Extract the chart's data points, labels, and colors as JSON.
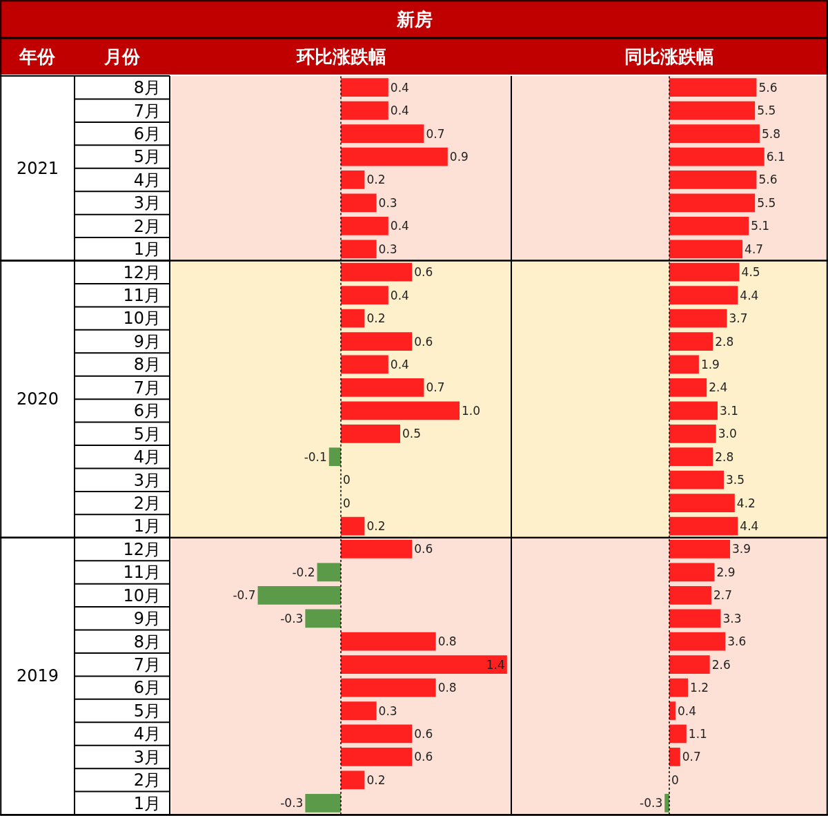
{
  "chart_data": [
    {
      "type": "bar",
      "orientation": "horizontal",
      "title": "环比涨跌幅",
      "ylabel": "2021",
      "annotations": [
        "新房",
        "年份",
        "月份"
      ],
      "categories": [
        "8月",
        "7月",
        "6月",
        "5月",
        "4月",
        "3月",
        "2月",
        "1月"
      ],
      "values": [
        0.4,
        0.4,
        0.7,
        0.9,
        0.2,
        0.3,
        0.4,
        0.3
      ],
      "value_labels": [
        "0.4",
        "0.4",
        "0.7",
        "0.9",
        "0.2",
        "0.3",
        "0.4",
        "0.3"
      ],
      "colors": [
        "#ff2020",
        "#ff2020",
        "#ff2020",
        "#ff2020",
        "#ff2020",
        "#ff2020",
        "#ff2020",
        "#ff2020"
      ],
      "xlim": [
        -1.43,
        1.43
      ],
      "tick_labels": "y",
      "bands": [
        {
          "axis": "x",
          "from": -1.43,
          "to": 1.43,
          "color": "#fde0d6"
        }
      ],
      "ref_lines": [
        {
          "axis": "x",
          "value": 0,
          "color": "#000000",
          "line_style": "dotted"
        }
      ]
    },
    {
      "type": "bar",
      "orientation": "horizontal",
      "title": "同比涨跌幅",
      "categories": [
        "8月",
        "7月",
        "6月",
        "5月",
        "4月",
        "3月",
        "2月",
        "1月"
      ],
      "values": [
        5.6,
        5.5,
        5.8,
        6.1,
        5.6,
        5.5,
        5.1,
        4.7
      ],
      "value_labels": [
        "5.6",
        "5.5",
        "5.8",
        "6.1",
        "5.6",
        "5.5",
        "5.1",
        "4.7"
      ],
      "colors": [
        "#ff2020",
        "#ff2020",
        "#ff2020",
        "#ff2020",
        "#ff2020",
        "#ff2020",
        "#ff2020",
        "#ff2020"
      ],
      "xlim": [
        -10.1,
        10.1
      ],
      "tick_labels": false,
      "bands": [
        {
          "axis": "x",
          "from": -10.1,
          "to": 10.1,
          "color": "#fde0d6"
        }
      ],
      "ref_lines": [
        {
          "axis": "x",
          "value": 0,
          "color": "#000000",
          "line_style": "dotted"
        }
      ]
    },
    {
      "type": "bar",
      "orientation": "horizontal",
      "ylabel": "2020",
      "categories": [
        "12月",
        "11月",
        "10月",
        "9月",
        "8月",
        "7月",
        "6月",
        "5月",
        "4月",
        "3月",
        "2月",
        "1月"
      ],
      "values": [
        0.6,
        0.4,
        0.2,
        0.6,
        0.4,
        0.7,
        1.0,
        0.5,
        -0.1,
        0,
        0,
        0.2
      ],
      "value_labels": [
        "0.6",
        "0.4",
        "0.2",
        "0.6",
        "0.4",
        "0.7",
        "1.0",
        "0.5",
        "-0.1",
        "0",
        "0",
        "0.2"
      ],
      "colors": [
        "#ff2020",
        "#ff2020",
        "#ff2020",
        "#ff2020",
        "#ff2020",
        "#ff2020",
        "#ff2020",
        "#ff2020",
        "#5a9a48",
        "#ff2020",
        "#ff2020",
        "#ff2020"
      ],
      "xlim": [
        -1.43,
        1.43
      ],
      "tick_labels": "y",
      "bands": [
        {
          "axis": "x",
          "from": -1.43,
          "to": 1.43,
          "color": "#fff0cc"
        }
      ],
      "ref_lines": [
        {
          "axis": "x",
          "value": 0,
          "color": "#000000",
          "line_style": "dotted"
        }
      ]
    },
    {
      "type": "bar",
      "orientation": "horizontal",
      "categories": [
        "12月",
        "11月",
        "10月",
        "9月",
        "8月",
        "7月",
        "6月",
        "5月",
        "4月",
        "3月",
        "2月",
        "1月"
      ],
      "values": [
        4.5,
        4.4,
        3.7,
        2.8,
        1.9,
        2.4,
        3.1,
        3.0,
        2.8,
        3.5,
        4.2,
        4.4
      ],
      "value_labels": [
        "4.5",
        "4.4",
        "3.7",
        "2.8",
        "1.9",
        "2.4",
        "3.1",
        "3.0",
        "2.8",
        "3.5",
        "4.2",
        "4.4"
      ],
      "colors": [
        "#ff2020",
        "#ff2020",
        "#ff2020",
        "#ff2020",
        "#ff2020",
        "#ff2020",
        "#ff2020",
        "#ff2020",
        "#ff2020",
        "#ff2020",
        "#ff2020",
        "#ff2020"
      ],
      "xlim": [
        -10.1,
        10.1
      ],
      "tick_labels": false,
      "bands": [
        {
          "axis": "x",
          "from": -10.1,
          "to": 10.1,
          "color": "#fff0cc"
        }
      ],
      "ref_lines": [
        {
          "axis": "x",
          "value": 0,
          "color": "#000000",
          "line_style": "dotted"
        }
      ]
    },
    {
      "type": "bar",
      "orientation": "horizontal",
      "ylabel": "2019",
      "categories": [
        "12月",
        "11月",
        "10月",
        "9月",
        "8月",
        "7月",
        "6月",
        "5月",
        "4月",
        "3月",
        "2月",
        "1月"
      ],
      "values": [
        0.6,
        -0.2,
        -0.7,
        -0.3,
        0.8,
        1.4,
        0.8,
        0.3,
        0.6,
        0.6,
        0.2,
        -0.3
      ],
      "value_labels": [
        "0.6",
        "-0.2",
        "-0.7",
        "-0.3",
        "0.8",
        "1.4",
        "0.8",
        "0.3",
        "0.6",
        "0.6",
        "0.2",
        "-0.3"
      ],
      "colors": [
        "#ff2020",
        "#5a9a48",
        "#5a9a48",
        "#5a9a48",
        "#ff2020",
        "#ff2020",
        "#ff2020",
        "#ff2020",
        "#ff2020",
        "#ff2020",
        "#ff2020",
        "#5a9a48"
      ],
      "xlim": [
        -1.43,
        1.43
      ],
      "tick_labels": "y",
      "bands": [
        {
          "axis": "x",
          "from": -1.43,
          "to": 1.43,
          "color": "#fde0d6"
        }
      ],
      "ref_lines": [
        {
          "axis": "x",
          "value": 0,
          "color": "#000000",
          "line_style": "dotted"
        }
      ]
    },
    {
      "type": "bar",
      "orientation": "horizontal",
      "categories": [
        "12月",
        "11月",
        "10月",
        "9月",
        "8月",
        "7月",
        "6月",
        "5月",
        "4月",
        "3月",
        "2月",
        "1月"
      ],
      "values": [
        3.9,
        2.9,
        2.7,
        3.3,
        3.6,
        2.6,
        1.2,
        0.4,
        1.1,
        0.7,
        0,
        -0.3
      ],
      "value_labels": [
        "3.9",
        "2.9",
        "2.7",
        "3.3",
        "3.6",
        "2.6",
        "1.2",
        "0.4",
        "1.1",
        "0.7",
        "0",
        "-0.3"
      ],
      "colors": [
        "#ff2020",
        "#ff2020",
        "#ff2020",
        "#ff2020",
        "#ff2020",
        "#ff2020",
        "#ff2020",
        "#ff2020",
        "#ff2020",
        "#ff2020",
        "#ff2020",
        "#5a9a48"
      ],
      "xlim": [
        -10.1,
        10.1
      ],
      "tick_labels": false,
      "bands": [
        {
          "axis": "x",
          "from": -10.1,
          "to": 10.1,
          "color": "#fde0d6"
        }
      ],
      "ref_lines": [
        {
          "axis": "x",
          "value": 0,
          "color": "#000000",
          "line_style": "dotted"
        }
      ]
    }
  ]
}
